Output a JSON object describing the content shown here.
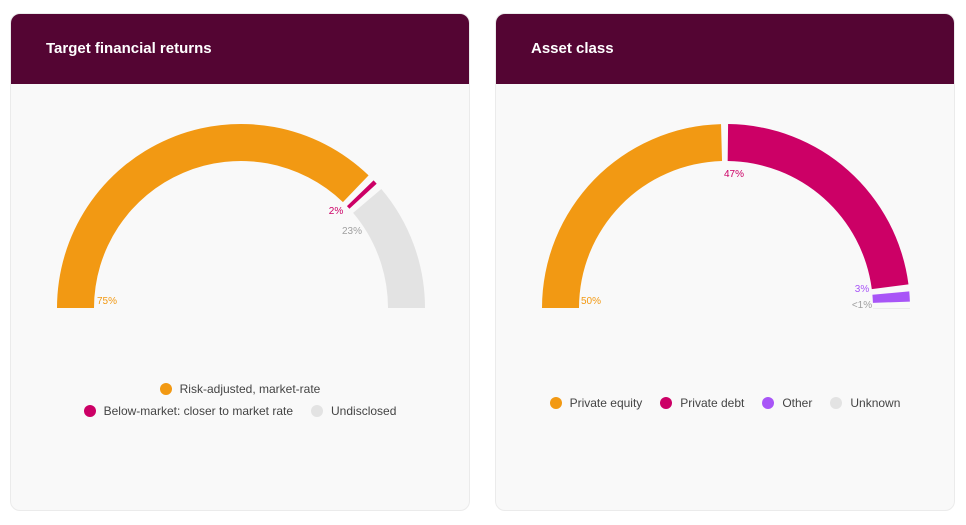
{
  "chart_data": [
    {
      "type": "pie",
      "subtype": "semi-donut",
      "title": "Target financial returns",
      "categories": [
        "Risk-adjusted, market-rate",
        "Below-market: closer to market rate",
        "Undisclosed"
      ],
      "values": [
        75,
        2,
        23
      ],
      "labels": [
        "75%",
        "2%",
        "23%"
      ],
      "colors": [
        "#f29913",
        "#cc0066",
        "#e3e3e3"
      ],
      "label_colors": [
        "#f29913",
        "#cc0066",
        "#a0a0a0"
      ],
      "legend_rows": [
        [
          0
        ],
        [
          1,
          2
        ]
      ]
    },
    {
      "type": "pie",
      "subtype": "semi-donut",
      "title": "Asset class",
      "categories": [
        "Private equity",
        "Private debt",
        "Other",
        "Unknown"
      ],
      "values": [
        50,
        47,
        3,
        0.5
      ],
      "labels": [
        "50%",
        "47%",
        "3%",
        "<1%"
      ],
      "colors": [
        "#f29913",
        "#cc0066",
        "#a855f7",
        "#e3e3e3"
      ],
      "label_colors": [
        "#f29913",
        "#cc0066",
        "#a855f7",
        "#a0a0a0"
      ],
      "legend_rows": [
        [
          0,
          1,
          2,
          3
        ]
      ]
    }
  ]
}
